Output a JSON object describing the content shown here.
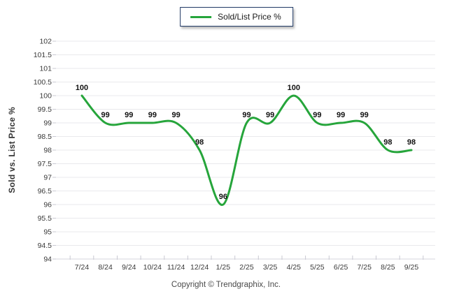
{
  "legend": {
    "label": "Sold/List Price %"
  },
  "footer": {
    "copyright": "Copyright © Trendgraphix, Inc."
  },
  "colors": {
    "line": "#26a53b",
    "grid": "#e9e9ec",
    "axis": "#d4d4dc",
    "tick": "#c9c9d2",
    "tick_label": "#3a3a3a",
    "data_label": "#111111",
    "legend_border": "#1f3864"
  },
  "chart_data": {
    "type": "line",
    "categories": [
      "7/24",
      "8/24",
      "9/24",
      "10/24",
      "11/24",
      "12/24",
      "1/25",
      "2/25",
      "3/25",
      "4/25",
      "5/25",
      "6/25",
      "7/25",
      "8/25",
      "9/25"
    ],
    "series": [
      {
        "name": "Sold/List Price %",
        "values": [
          100,
          99,
          99,
          99,
          99,
          98,
          96,
          99,
          99,
          100,
          99,
          99,
          99,
          98,
          98
        ]
      }
    ],
    "title": "",
    "xlabel": "",
    "ylabel": "Sold vs. List Price %",
    "ylim": [
      94,
      102
    ],
    "ytick_step": 0.5,
    "grid": true,
    "legend_position": "top-center",
    "smooth": true,
    "data_labels": true
  }
}
